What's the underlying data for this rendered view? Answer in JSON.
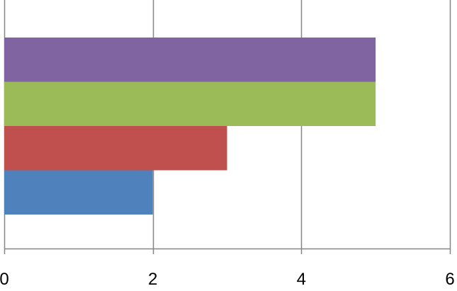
{
  "chart_data": {
    "type": "bar",
    "orientation": "horizontal",
    "title": "",
    "xlabel": "",
    "ylabel": "",
    "xlim": [
      0,
      6
    ],
    "x_ticks": [
      0,
      2,
      4,
      6
    ],
    "x_tick_labels": [
      "0",
      "2",
      "4",
      "6"
    ],
    "grid": "vertical-major",
    "legend": "none",
    "bars": [
      {
        "value": 2,
        "color": "#4f81bd"
      },
      {
        "value": 3,
        "color": "#c0504d"
      },
      {
        "value": 5,
        "color": "#9bbb59"
      },
      {
        "value": 5,
        "color": "#8064a2"
      }
    ]
  }
}
